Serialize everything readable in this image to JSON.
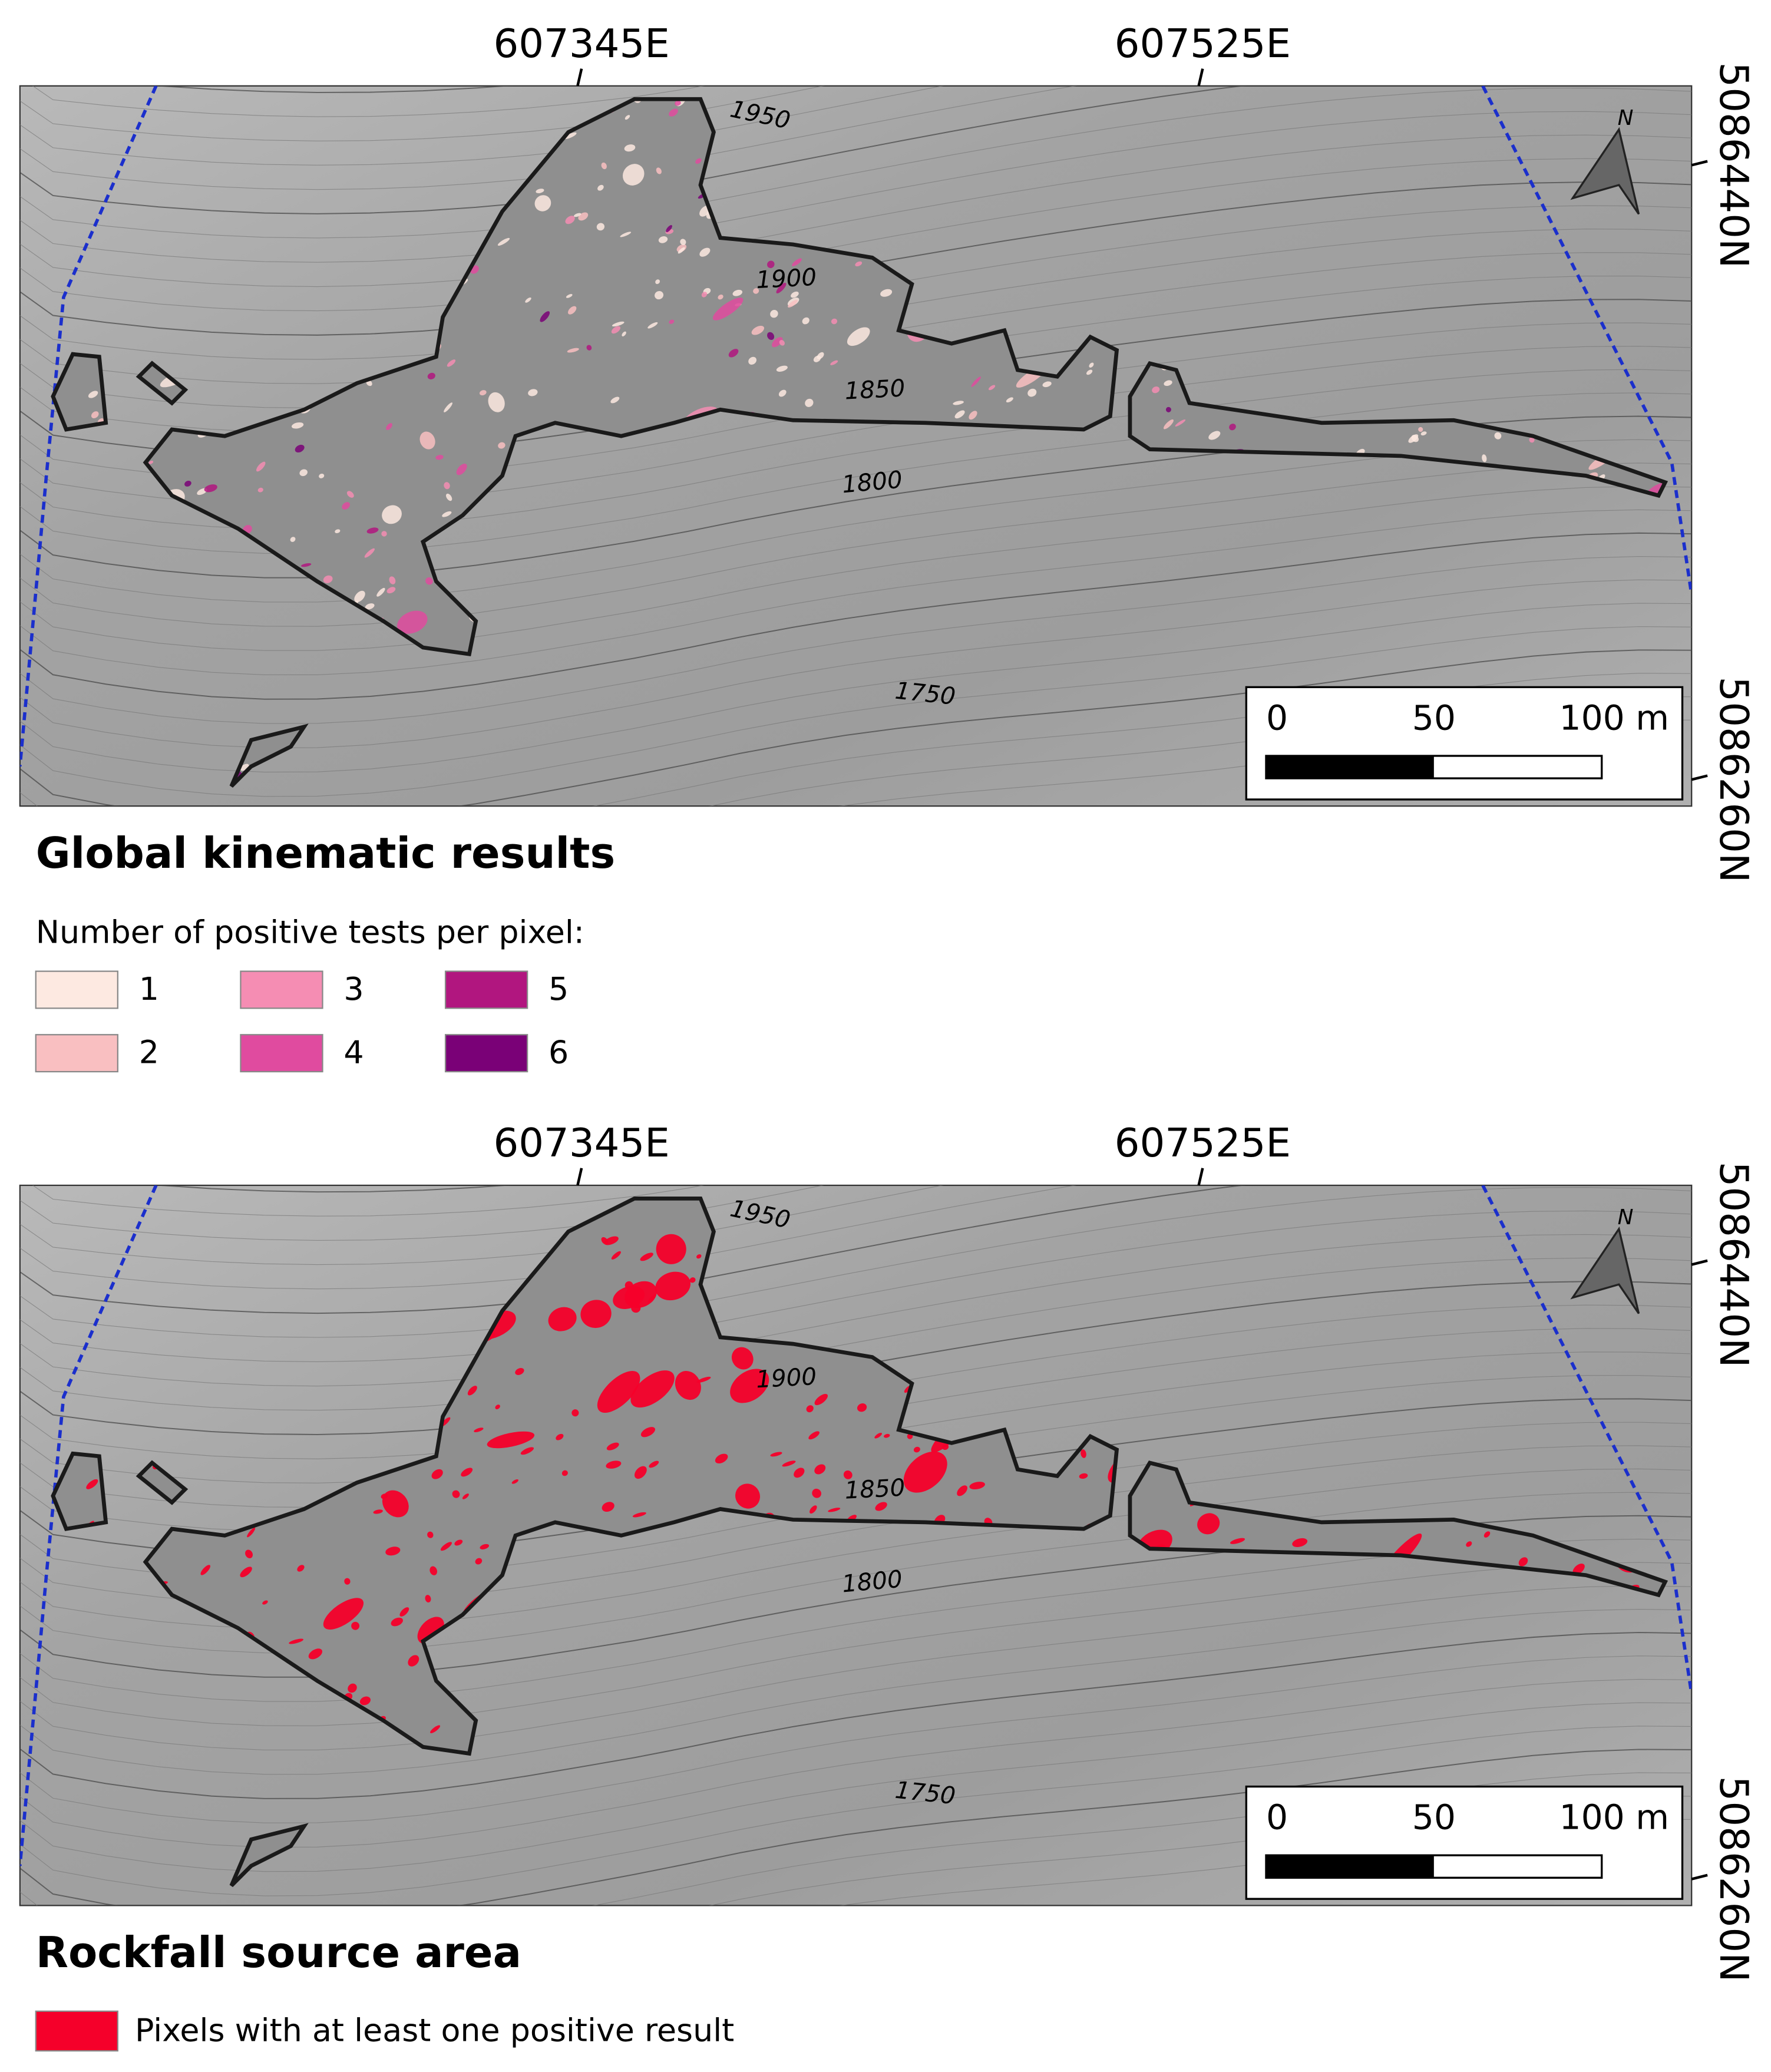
{
  "maps": [
    {
      "easting_labels": [
        "607345E",
        "607525E"
      ],
      "northing_labels": [
        "5086440N",
        "5086260N"
      ],
      "contour_labels": [
        "1950",
        "1900",
        "1850",
        "1800",
        "1750"
      ],
      "north_label": "N",
      "scale_labels": [
        "0",
        "50",
        "100 m"
      ],
      "title": "Global kinematic results",
      "legend_title": "Number of positive tests per pixel:",
      "legend": [
        {
          "label": "1",
          "color": "#fde9e1"
        },
        {
          "label": "2",
          "color": "#f9bfc1"
        },
        {
          "label": "3",
          "color": "#f58db3"
        },
        {
          "label": "4",
          "color": "#e04b9f"
        },
        {
          "label": "5",
          "color": "#b1167f"
        },
        {
          "label": "6",
          "color": "#7a0177"
        }
      ]
    },
    {
      "easting_labels": [
        "607345E",
        "607525E"
      ],
      "northing_labels": [
        "5086440N",
        "5086260N"
      ],
      "contour_labels": [
        "1950",
        "1900",
        "1850",
        "1800",
        "1750"
      ],
      "north_label": "N",
      "scale_labels": [
        "0",
        "50",
        "100 m"
      ],
      "title": "Rockfall source area",
      "legend": [
        {
          "label": "Pixels with at least one positive result",
          "color": "#f5002a"
        }
      ]
    }
  ]
}
